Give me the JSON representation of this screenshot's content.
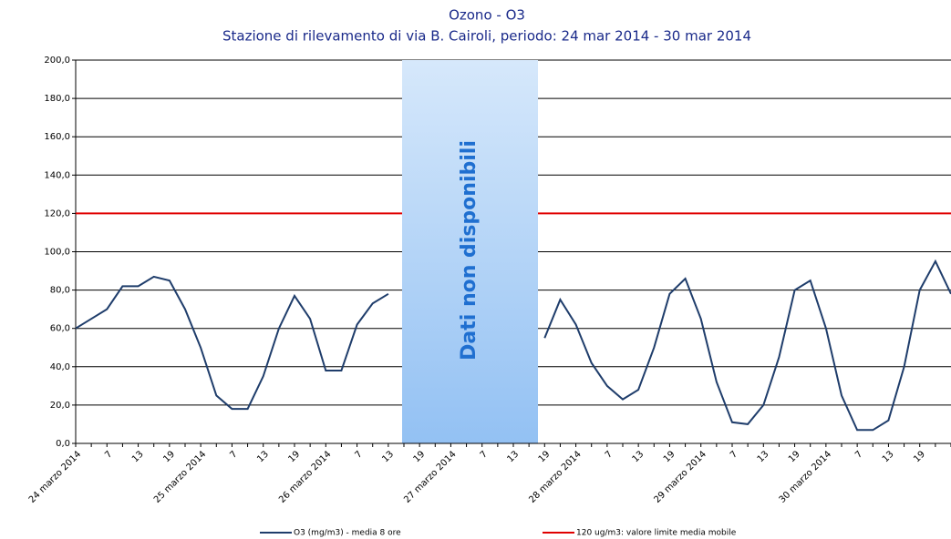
{
  "chart_data": {
    "type": "line",
    "title": "Ozono - O3",
    "subtitle": "Stazione di rilevamento di via B. Cairoli, periodo: 24 mar 2014 - 30 mar 2014",
    "categories": [
      "24 marzo 2014",
      null,
      "7",
      null,
      "13",
      null,
      "19",
      null,
      "25 marzo 2014",
      null,
      "7",
      null,
      "13",
      null,
      "19",
      null,
      "26 marzo 2014",
      null,
      "7",
      null,
      "13",
      null,
      "19",
      null,
      "27 marzo 2014",
      null,
      "7",
      null,
      "13",
      null,
      "19",
      null,
      "28 marzo 2014",
      null,
      "7",
      null,
      "13",
      null,
      "19",
      null,
      "29 marzo 2014",
      null,
      "7",
      null,
      "13",
      null,
      "19",
      null,
      "30 marzo 2014",
      null,
      "7",
      null,
      "13",
      null,
      "19",
      null,
      null
    ],
    "series": [
      {
        "name": "O3 (mg/m3) - media 8 ore",
        "color": "#1f3d6b",
        "values": [
          60,
          65,
          70,
          82,
          82,
          87,
          85,
          70,
          50,
          25,
          18,
          18,
          35,
          60,
          77,
          65,
          38,
          38,
          62,
          73,
          78,
          null,
          null,
          null,
          null,
          null,
          null,
          null,
          null,
          null,
          55,
          75,
          62,
          42,
          30,
          23,
          28,
          50,
          78,
          86,
          65,
          32,
          11,
          10,
          20,
          45,
          80,
          85,
          60,
          25,
          7,
          7,
          12,
          40,
          80,
          95,
          78
        ]
      }
    ],
    "reference_line": {
      "name": "120 ug/m3: valore limite media mobile",
      "value": 120,
      "color": "#e00000"
    },
    "annotation": "Dati non disponibili",
    "ylim": [
      0,
      200
    ],
    "yticks": [
      {
        "value": 0,
        "label": "0,0"
      },
      {
        "value": 20,
        "label": "20,0"
      },
      {
        "value": 40,
        "label": "40,0"
      },
      {
        "value": 60,
        "label": "60,0"
      },
      {
        "value": 80,
        "label": "80,0"
      },
      {
        "value": 100,
        "label": "100,0"
      },
      {
        "value": 120,
        "label": "120,0"
      },
      {
        "value": 140,
        "label": "140,0"
      },
      {
        "value": 160,
        "label": "160,0"
      },
      {
        "value": 180,
        "label": "180,0"
      },
      {
        "value": 200,
        "label": "200,0"
      }
    ],
    "grid": true
  }
}
